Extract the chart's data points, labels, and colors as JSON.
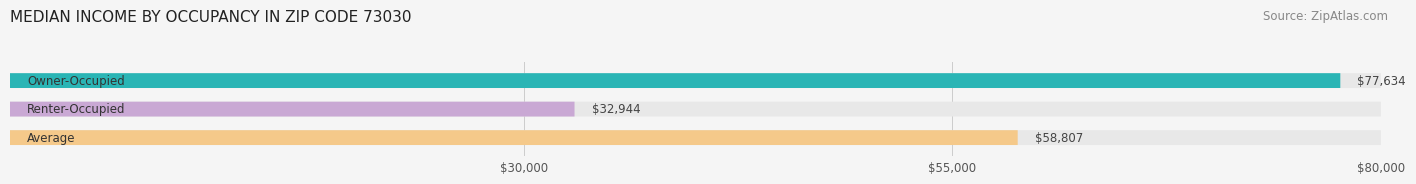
{
  "title": "MEDIAN INCOME BY OCCUPANCY IN ZIP CODE 73030",
  "source": "Source: ZipAtlas.com",
  "categories": [
    "Owner-Occupied",
    "Renter-Occupied",
    "Average"
  ],
  "values": [
    77634,
    32944,
    58807
  ],
  "bar_colors": [
    "#2ab5b5",
    "#c9a8d4",
    "#f5c98a"
  ],
  "value_labels": [
    "$77,634",
    "$32,944",
    "$58,807"
  ],
  "xmin": 0,
  "xmax": 80000,
  "xticks": [
    30000,
    55000,
    80000
  ],
  "xtick_labels": [
    "$30,000",
    "$55,000",
    "$80,000"
  ],
  "background_color": "#f5f5f5",
  "bar_background_color": "#e8e8e8",
  "title_fontsize": 11,
  "source_fontsize": 8.5,
  "label_fontsize": 8.5,
  "value_fontsize": 8.5,
  "tick_fontsize": 8.5
}
